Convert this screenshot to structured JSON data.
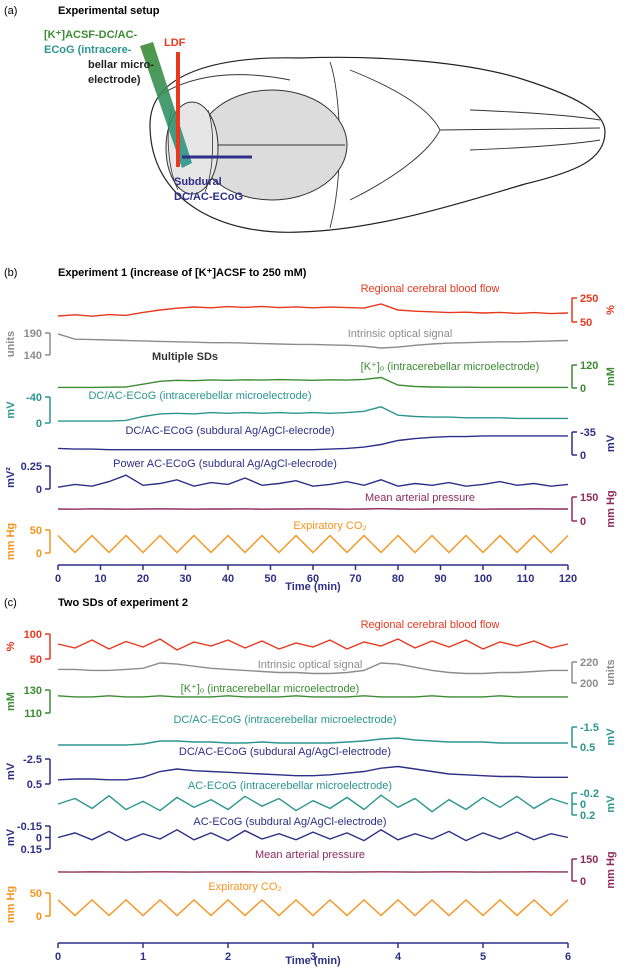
{
  "panel_a": {
    "label": "(a)",
    "title": "Experimental setup",
    "electrode_label": [
      "[K⁺]ACSF-DC/AC-",
      "ECoG (intracere-",
      "bellar micro-",
      "electrode)"
    ],
    "ldf_label": "LDF",
    "subdural_label": [
      "Subdural",
      "DC/AC-ECoG"
    ]
  },
  "chart_data": [
    {
      "type": "line",
      "panel_label": "(b)",
      "title": "Experiment 1 (increase of [K⁺]ACSF to 250 mM)",
      "x_label": "Time (min)",
      "xlim": [
        0,
        120
      ],
      "xticks": [
        0,
        10,
        20,
        30,
        40,
        50,
        60,
        70,
        80,
        90,
        100,
        110,
        120
      ],
      "annotation": "Multiple SDs",
      "x": [
        0,
        4,
        8,
        12,
        16,
        20,
        24,
        28,
        32,
        36,
        40,
        44,
        48,
        52,
        56,
        60,
        64,
        68,
        72,
        76,
        80,
        84,
        88,
        92,
        96,
        100,
        104,
        108,
        112,
        116,
        120
      ],
      "series": [
        {
          "name": "Regional cerebral blood flow",
          "color": "#e8381e",
          "unit": "%",
          "axis": "right",
          "ylim": [
            50,
            250
          ],
          "yticks": [
            50,
            250
          ],
          "values": [
            100,
            110,
            98,
            112,
            105,
            130,
            150,
            165,
            175,
            168,
            178,
            172,
            180,
            170,
            176,
            168,
            174,
            170,
            166,
            200,
            150,
            140,
            135,
            128,
            132,
            125,
            130,
            122,
            128,
            120,
            125
          ]
        },
        {
          "name": "Intrinsic optical signal",
          "color": "#8c8c8c",
          "unit": "units",
          "axis": "left",
          "ylim": [
            140,
            190
          ],
          "yticks": [
            140,
            190
          ],
          "values": [
            188,
            176,
            175,
            174,
            173,
            172,
            171,
            170,
            169,
            168,
            168,
            167,
            166,
            165,
            164,
            164,
            163,
            162,
            160,
            156,
            158,
            162,
            165,
            167,
            168,
            169,
            170,
            170,
            171,
            172,
            173
          ]
        },
        {
          "name": "[K⁺]ₒ (intracerebellar microelectrode)",
          "color": "#3c8c32",
          "unit": "mM",
          "axis": "right",
          "ylim": [
            0,
            120
          ],
          "yticks": [
            0,
            120
          ],
          "values": [
            3,
            3,
            3,
            4,
            5,
            20,
            35,
            40,
            38,
            42,
            40,
            43,
            41,
            44,
            42,
            40,
            43,
            41,
            45,
            55,
            15,
            8,
            5,
            4,
            4,
            3,
            3,
            3,
            3,
            3,
            3
          ]
        },
        {
          "name": "DC/AC-ECoG (intracerebellar microelectrode)",
          "color": "#2b9690",
          "unit": "mV",
          "axis": "left",
          "ylim": [
            0,
            -40
          ],
          "yticks": [
            0,
            -40
          ],
          "values": [
            -3,
            -3,
            -3,
            -3,
            -4,
            -10,
            -14,
            -15,
            -14,
            -16,
            -15,
            -16,
            -15,
            -16,
            -15,
            -16,
            -15,
            -16,
            -18,
            -25,
            -12,
            -10,
            -9,
            -9,
            -8,
            -8,
            -8,
            -7,
            -7,
            -7,
            -7
          ]
        },
        {
          "name": "DC/AC-ECoG (subdural Ag/AgCl-elecrode)",
          "color": "#2f2f88",
          "unit": "mV",
          "axis": "right",
          "ylim": [
            0,
            -35
          ],
          "yticks": [
            0,
            -35
          ],
          "values": [
            -10,
            -9,
            -9,
            -8,
            -8,
            -8,
            -8,
            -8,
            -8,
            -8,
            -8,
            -8,
            -8,
            -8,
            -8,
            -8,
            -9,
            -10,
            -12,
            -16,
            -22,
            -25,
            -27,
            -28,
            -28,
            -29,
            -29,
            -29,
            -29,
            -29,
            -29
          ]
        },
        {
          "name": "Power AC-ECoG (subdural Ag/AgCl-elecrode)",
          "color": "#2f2f88",
          "unit": "mV²",
          "axis": "left",
          "ylim": [
            0,
            0.25
          ],
          "yticks": [
            0,
            0.25
          ],
          "values": [
            0.02,
            0.05,
            0.03,
            0.08,
            0.15,
            0.04,
            0.06,
            0.1,
            0.03,
            0.07,
            0.05,
            0.12,
            0.04,
            0.06,
            0.09,
            0.03,
            0.05,
            0.08,
            0.04,
            0.1,
            0.03,
            0.06,
            0.04,
            0.07,
            0.03,
            0.05,
            0.08,
            0.04,
            0.06,
            0.03,
            0.05
          ]
        },
        {
          "name": "Mean arterial pressure",
          "color": "#8e2c5c",
          "unit": "mm Hg",
          "axis": "right",
          "ylim": [
            0,
            150
          ],
          "yticks": [
            0,
            150
          ],
          "values": [
            75,
            74,
            76,
            75,
            74,
            75,
            76,
            75,
            74,
            75,
            75,
            76,
            74,
            75,
            75,
            76,
            75,
            74,
            75,
            77,
            75,
            74,
            75,
            76,
            75,
            74,
            75,
            75,
            76,
            75,
            75
          ]
        },
        {
          "name": "Expiratory CO₂",
          "color": "#f7941d",
          "unit": "mm Hg",
          "axis": "left",
          "ylim": [
            0,
            50
          ],
          "yticks": [
            0,
            50
          ],
          "values": [
            38,
            1,
            38,
            1,
            38,
            1,
            38,
            1,
            38,
            1,
            38,
            1,
            38,
            1,
            38,
            1,
            38,
            1,
            38,
            1,
            38,
            1,
            38,
            1,
            38,
            1,
            38,
            1,
            38,
            1,
            38
          ]
        }
      ]
    },
    {
      "type": "line",
      "panel_label": "(c)",
      "title": "Two SDs of experiment 2",
      "x_label": "Time (min)",
      "xlim": [
        0,
        6
      ],
      "xticks": [
        0,
        1,
        2,
        3,
        4,
        5,
        6
      ],
      "x": [
        0,
        0.2,
        0.4,
        0.6,
        0.8,
        1,
        1.2,
        1.4,
        1.6,
        1.8,
        2,
        2.2,
        2.4,
        2.6,
        2.8,
        3,
        3.2,
        3.4,
        3.6,
        3.8,
        4,
        4.2,
        4.4,
        4.6,
        4.8,
        5,
        5.2,
        5.4,
        5.6,
        5.8,
        6
      ],
      "series": [
        {
          "name": "Regional cerebral blood flow",
          "color": "#e8381e",
          "unit": "%",
          "axis": "left",
          "ylim": [
            50,
            100
          ],
          "yticks": [
            50,
            100
          ],
          "values": [
            80,
            72,
            88,
            70,
            85,
            74,
            90,
            68,
            84,
            76,
            88,
            72,
            86,
            70,
            82,
            74,
            88,
            70,
            84,
            76,
            90,
            72,
            86,
            74,
            88,
            70,
            84,
            76,
            86,
            72,
            80
          ]
        },
        {
          "name": "Intrinsic optical signal",
          "color": "#8c8c8c",
          "unit": "units",
          "axis": "right",
          "ylim": [
            200,
            220
          ],
          "yticks": [
            200,
            220
          ],
          "values": [
            213,
            213,
            212,
            212,
            213,
            214,
            219,
            218,
            216,
            214,
            213,
            212,
            211,
            210,
            210,
            209,
            209,
            210,
            212,
            219,
            218,
            215,
            212,
            210,
            209,
            209,
            210,
            210,
            211,
            212,
            212
          ]
        },
        {
          "name": "[K⁺]ₒ (intracerebellar microelectrode)",
          "color": "#3c8c32",
          "unit": "mM",
          "axis": "left",
          "ylim": [
            110,
            130
          ],
          "yticks": [
            110,
            130
          ],
          "values": [
            125,
            124,
            124,
            125,
            124,
            124,
            125,
            124,
            124,
            124,
            125,
            124,
            124,
            124,
            125,
            124,
            124,
            124,
            125,
            124,
            124,
            124,
            125,
            124,
            124,
            124,
            125,
            124,
            124,
            124,
            124
          ]
        },
        {
          "name": "DC/AC-ECoG (intracerebellar microelectrode)",
          "color": "#2b9690",
          "unit": "mV",
          "axis": "right",
          "ylim": [
            0.5,
            -1.5
          ],
          "yticks": [
            0.5,
            -1.5
          ],
          "values": [
            0.3,
            0.3,
            0.3,
            0.3,
            0.3,
            0.2,
            -0.1,
            -0.1,
            0,
            0,
            0.1,
            0.1,
            0,
            0.1,
            0.1,
            0.1,
            0.1,
            0,
            -0.1,
            -0.3,
            -0.4,
            -0.2,
            -0.1,
            0,
            0,
            0,
            0.1,
            0.1,
            0.1,
            0.1,
            0.1
          ]
        },
        {
          "name": "DC/AC-ECoG (subdural Ag/AgCl-electrode)",
          "color": "#2f2f88",
          "unit": "mV",
          "axis": "left",
          "ylim": [
            0.5,
            -2.5
          ],
          "yticks": [
            0.5,
            -2.5
          ],
          "values": [
            0,
            -0.1,
            -0.1,
            0,
            0,
            -0.3,
            -1.0,
            -1.3,
            -1.1,
            -1.0,
            -0.9,
            -0.8,
            -0.7,
            -0.6,
            -0.5,
            -0.5,
            -0.6,
            -0.8,
            -1.0,
            -1.4,
            -1.6,
            -1.3,
            -1.0,
            -0.7,
            -0.6,
            -0.5,
            -0.4,
            -0.4,
            -0.3,
            -0.3,
            -0.3
          ]
        },
        {
          "name": "AC-ECoG (intracerebellar microelectrode)",
          "color": "#2b9690",
          "unit": "mV",
          "axis": "right",
          "ylim": [
            0.2,
            -0.2
          ],
          "yticks": [
            -0.2,
            0,
            0.2
          ],
          "values": [
            0,
            -0.1,
            0.08,
            -0.15,
            0.1,
            -0.05,
            0.12,
            -0.12,
            0.06,
            -0.08,
            0.1,
            -0.14,
            0.04,
            -0.1,
            0.12,
            -0.06,
            0.08,
            -0.12,
            0.1,
            -0.16,
            0.06,
            -0.1,
            0.14,
            -0.08,
            0.1,
            -0.12,
            0.06,
            -0.14,
            0.08,
            -0.1,
            0
          ]
        },
        {
          "name": "AC-ECoG (subdural Ag/AgCl-electrode)",
          "color": "#2f2f88",
          "unit": "mV",
          "axis": "left",
          "ylim": [
            0.15,
            -0.15
          ],
          "yticks": [
            -0.15,
            0,
            0.15
          ],
          "values": [
            0,
            -0.06,
            0.03,
            -0.08,
            0.04,
            -0.05,
            0.02,
            -0.1,
            0.03,
            -0.06,
            0.04,
            -0.09,
            0.02,
            -0.05,
            0.03,
            -0.07,
            0.02,
            -0.06,
            0.04,
            -0.1,
            0.03,
            -0.05,
            0.02,
            -0.08,
            0.04,
            -0.06,
            0.02,
            -0.07,
            0.03,
            -0.05,
            0
          ]
        },
        {
          "name": "Mean arterial pressure",
          "color": "#8e2c5c",
          "unit": "mm Hg",
          "axis": "right",
          "ylim": [
            0,
            150
          ],
          "yticks": [
            0,
            150
          ],
          "values": [
            62,
            61,
            63,
            62,
            61,
            62,
            63,
            62,
            61,
            62,
            62,
            63,
            61,
            62,
            62,
            63,
            62,
            61,
            62,
            63,
            62,
            61,
            62,
            63,
            62,
            61,
            62,
            62,
            63,
            62,
            62
          ]
        },
        {
          "name": "Expiratory CO₂",
          "color": "#f7941d",
          "unit": "mm Hg",
          "axis": "left",
          "ylim": [
            0,
            50
          ],
          "yticks": [
            0,
            50
          ],
          "values": [
            35,
            1,
            35,
            1,
            35,
            1,
            35,
            1,
            35,
            1,
            35,
            1,
            35,
            1,
            35,
            1,
            35,
            1,
            35,
            1,
            35,
            1,
            35,
            1,
            35,
            1,
            35,
            1,
            35,
            1,
            35
          ]
        }
      ]
    }
  ]
}
